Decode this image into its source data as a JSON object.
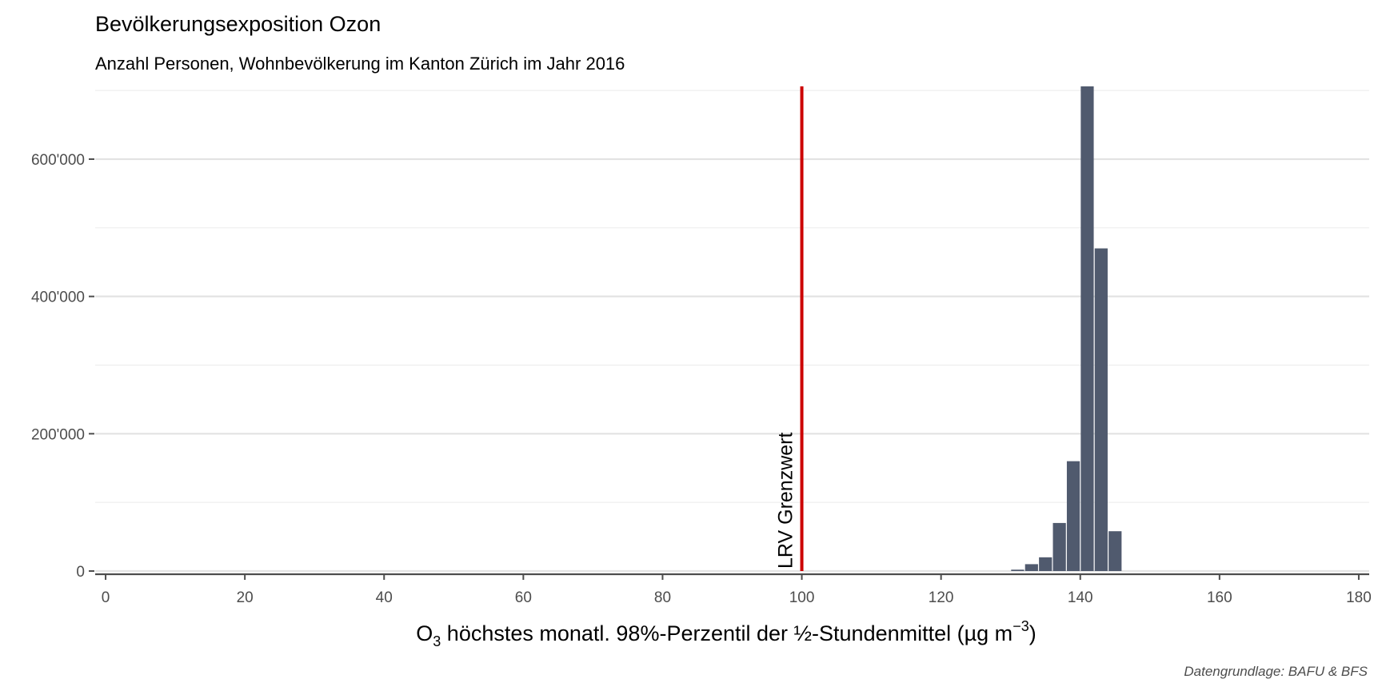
{
  "chart_data": {
    "type": "bar",
    "title": "Bevölkerungsexposition Ozon",
    "subtitle": "Anzahl Personen, Wohnbevölkerung im Kanton Zürich im Jahr 2016",
    "xlabel": {
      "prefix": "O",
      "sub": "3",
      "main": " höchstes monatl. 98%-Perzentil der ½-Stundenmittel (µg m",
      "sup": "−3",
      "suffix": ")"
    },
    "caption": "Datengrundlage: BAFU & BFS",
    "xlim": [
      -1.5,
      181.5
    ],
    "ylim": [
      0,
      706000
    ],
    "x_ticks": [
      0,
      20,
      40,
      60,
      80,
      100,
      120,
      140,
      160,
      180
    ],
    "x_tick_labels": [
      "0",
      "20",
      "40",
      "60",
      "80",
      "100",
      "120",
      "140",
      "160",
      "180"
    ],
    "y_ticks": [
      0,
      200000,
      400000,
      600000
    ],
    "y_tick_labels": [
      "0",
      "200'000",
      "400'000",
      "600'000"
    ],
    "y_minor_ticks": [
      100000,
      300000,
      500000,
      700000
    ],
    "bar_width": 2,
    "bar_color": "#505a6e",
    "bars": [
      {
        "x": 131,
        "value": 2000
      },
      {
        "x": 133,
        "value": 10000
      },
      {
        "x": 135,
        "value": 20000
      },
      {
        "x": 137,
        "value": 70000
      },
      {
        "x": 139,
        "value": 160000
      },
      {
        "x": 141,
        "value": 706000
      },
      {
        "x": 143,
        "value": 470000
      },
      {
        "x": 145,
        "value": 58000
      }
    ],
    "reference_line": {
      "x": 100,
      "label": "LRV Grenzwert",
      "color": "#cc0000"
    },
    "grid": true,
    "legend": "none"
  }
}
